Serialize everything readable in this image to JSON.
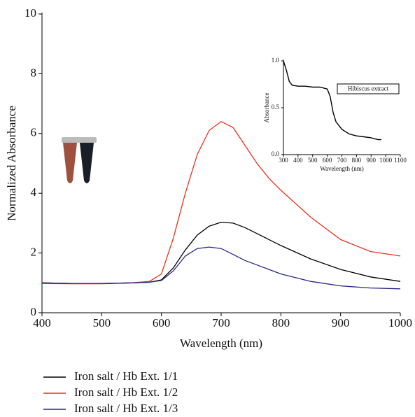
{
  "chart_data": [
    {
      "type": "line",
      "x_label": "Wavelength (nm)",
      "y_label": "Normalized Absorbance",
      "x": [
        400,
        450,
        500,
        550,
        580,
        600,
        620,
        640,
        660,
        680,
        700,
        720,
        740,
        760,
        780,
        800,
        850,
        900,
        950,
        1000
      ],
      "xlim": [
        400,
        1000
      ],
      "xticks": [
        400,
        500,
        600,
        700,
        800,
        900,
        1000
      ],
      "ylim": [
        0,
        10
      ],
      "yticks": [
        0,
        2,
        4,
        6,
        8,
        10
      ],
      "legend": "below",
      "series": [
        {
          "name": "Iron salt / Hb Ext. 1/1",
          "color": "#000000",
          "values": [
            1.0,
            0.98,
            0.98,
            1.0,
            1.02,
            1.1,
            1.5,
            2.1,
            2.6,
            2.9,
            3.03,
            3.0,
            2.85,
            2.65,
            2.45,
            2.25,
            1.8,
            1.45,
            1.2,
            1.05
          ]
        },
        {
          "name": "Iron salt / Hb Ext. 1/2",
          "color": "#e8321e",
          "values": [
            0.98,
            0.97,
            0.97,
            1.0,
            1.05,
            1.3,
            2.5,
            4.0,
            5.3,
            6.1,
            6.4,
            6.2,
            5.6,
            5.0,
            4.5,
            4.1,
            3.2,
            2.45,
            2.05,
            1.9
          ]
        },
        {
          "name": "Iron salt / Hb Ext. 1/3",
          "color": "#2a2585",
          "values": [
            1.0,
            0.98,
            0.98,
            1.0,
            1.02,
            1.08,
            1.4,
            1.9,
            2.15,
            2.2,
            2.15,
            1.95,
            1.75,
            1.6,
            1.45,
            1.3,
            1.05,
            0.9,
            0.83,
            0.8
          ]
        }
      ]
    },
    {
      "type": "line",
      "x_label": "Wavelength (nm)",
      "y_label": "Absorbance",
      "x": [
        300,
        320,
        340,
        360,
        400,
        450,
        500,
        550,
        600,
        620,
        640,
        660,
        700,
        750,
        800,
        850,
        900,
        920,
        950,
        970
      ],
      "xlim": [
        300,
        1100
      ],
      "xticks": [
        300,
        400,
        500,
        600,
        700,
        800,
        900,
        1000,
        1100
      ],
      "ylim": [
        0,
        1
      ],
      "yticks": [
        {
          "value": 0,
          "label": "0.0"
        },
        {
          "value": 0.5,
          "label": "0.5"
        },
        {
          "value": 1,
          "label": "1.0"
        }
      ],
      "legend": "upper right",
      "series": [
        {
          "name": "Hibiscus extract",
          "color": "#000000",
          "values": [
            1.0,
            0.9,
            0.78,
            0.74,
            0.73,
            0.73,
            0.72,
            0.72,
            0.7,
            0.62,
            0.45,
            0.35,
            0.27,
            0.22,
            0.2,
            0.19,
            0.18,
            0.17,
            0.16,
            0.16
          ]
        }
      ]
    }
  ]
}
